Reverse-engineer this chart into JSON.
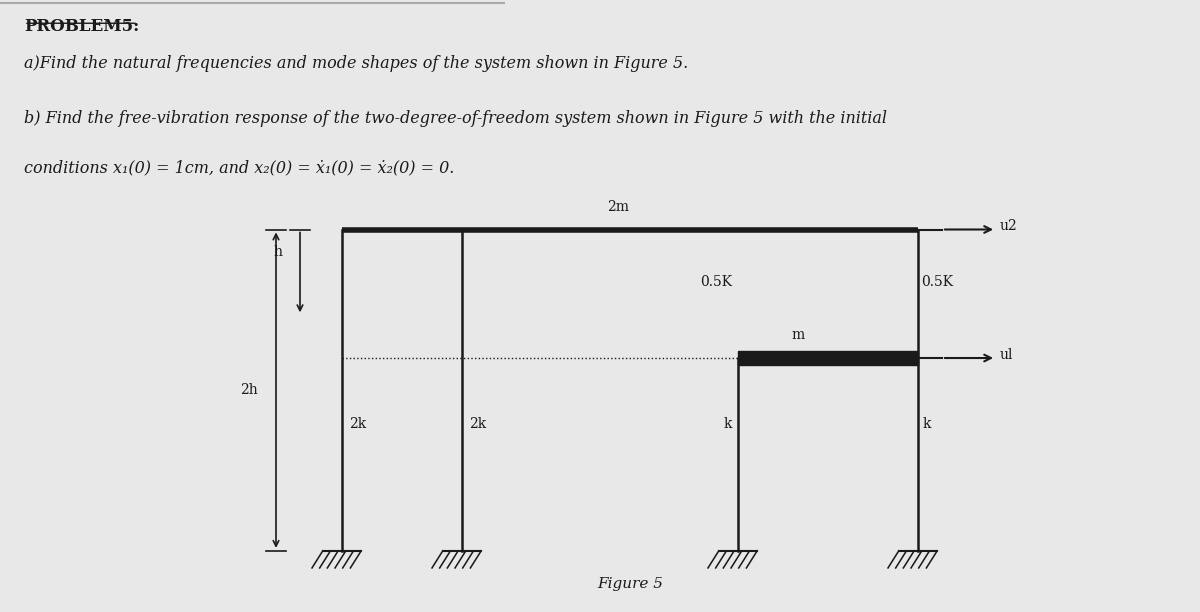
{
  "title": "PROBLEM5:",
  "line1": "a)Find the natural frequencies and mode shapes of the system shown in Figure 5.",
  "line2": "b) Find the free-vibration response of the two-degree-of-freedom system shown in Figure 5 with the initial",
  "line3": "conditions x₁(0) = 1cm, and x₂(0) = ẋ₁(0) = ẋ₂(0) = 0.",
  "fig_label": "Figure 5",
  "bg_color": "#e8e8e8",
  "text_color": "#1a1a1a",
  "line_color": "#1a1a1a"
}
